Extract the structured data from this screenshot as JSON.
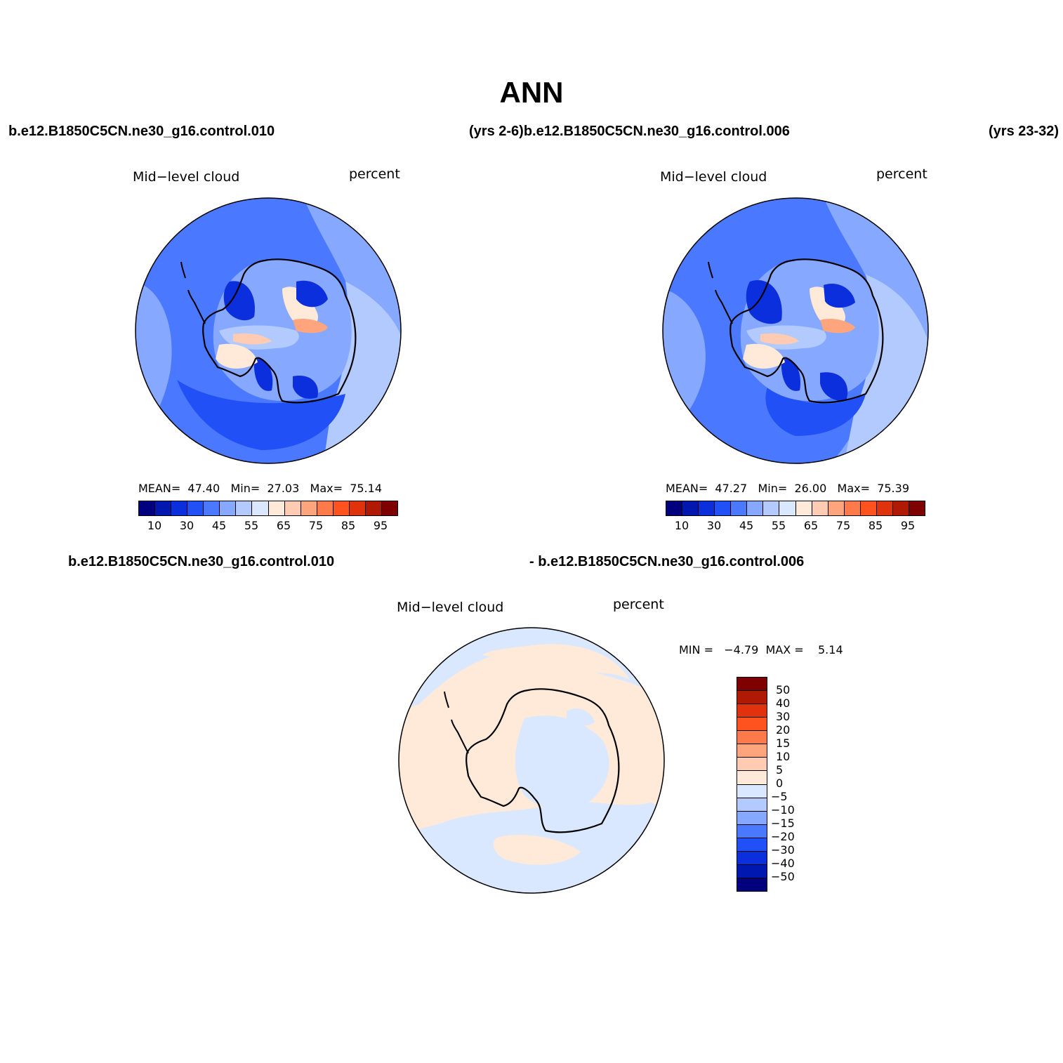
{
  "title": "ANN",
  "panels": [
    {
      "case_left": "b.e12.B1850C5CN.ne30_g16.control.010",
      "case_right": "(yrs 2-6)b.e12.B1850C5CN.ne30_g16.control.006",
      "variable": "Mid−level cloud",
      "units": "percent",
      "stats": {
        "mean_label": "MEAN=",
        "mean": "47.40",
        "min_label": "Min=",
        "min": "27.03",
        "max_label": "Max=",
        "max": "75.14"
      }
    },
    {
      "case_right": "(yrs 23-32)",
      "variable": "Mid−level cloud",
      "units": "percent",
      "stats": {
        "mean_label": "MEAN=",
        "mean": "47.27",
        "min_label": "Min=",
        "min": "26.00",
        "max_label": "Max=",
        "max": "75.39"
      }
    },
    {
      "case_left": "b.e12.B1850C5CN.ne30_g16.control.010",
      "case_right": "- b.e12.B1850C5CN.ne30_g16.control.006",
      "variable": "Mid−level cloud",
      "units": "percent",
      "minmax": "MIN =   −4.79  MAX =    5.14"
    }
  ],
  "colorbar_abs": {
    "colors": [
      "#00007f",
      "#0018b0",
      "#0c2fde",
      "#2150f6",
      "#4a79ff",
      "#86a8ff",
      "#b3caff",
      "#d9e8ff",
      "#ffe9d9",
      "#ffcbb2",
      "#ffa57e",
      "#ff7a4a",
      "#ff531f",
      "#e0320c",
      "#b01a05",
      "#7f0000"
    ],
    "labels": [
      "10",
      "30",
      "45",
      "55",
      "65",
      "75",
      "85",
      "95"
    ]
  },
  "colorbar_diff": {
    "colors": [
      "#7f0000",
      "#b01a05",
      "#e0320c",
      "#ff531f",
      "#ff7a4a",
      "#ffa57e",
      "#ffcbb2",
      "#ffe9d9",
      "#d9e8ff",
      "#b3caff",
      "#86a8ff",
      "#4a79ff",
      "#2150f6",
      "#0c2fde",
      "#0018b0",
      "#00007f"
    ],
    "labels": [
      "50",
      "40",
      "30",
      "20",
      "15",
      "10",
      "5",
      "0",
      "−5",
      "−10",
      "−15",
      "−20",
      "−30",
      "−40",
      "−50"
    ]
  }
}
